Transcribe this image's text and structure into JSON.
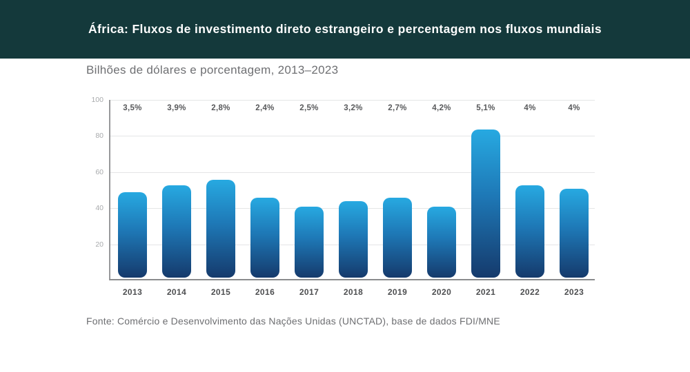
{
  "header": {
    "title": "África: Fluxos de investimento direto estrangeiro e percentagem nos fluxos mundiais"
  },
  "subtitle": "Bilhões de dólares e porcentagem, 2013–2023",
  "source": "Fonte: Comércio e Desenvolvimento das Nações Unidas (UNCTAD), base de dados FDI/MNE",
  "colors": {
    "header_bg": "#14393B",
    "title_text": "#FFFFFF",
    "bar_gradient_top": "#27A9E1",
    "bar_gradient_bottom": "#153A6C",
    "gridline": "#E4E5E6",
    "axis": "#97989A",
    "y_tick_label": "#A8AAAC",
    "pct_label": "#58595B",
    "year_label": "#4D4E50",
    "subtitle_text": "#6E6F72",
    "source_text": "#6D6E71"
  },
  "chart_data": {
    "type": "bar",
    "title": "África: Fluxos de investimento direto estrangeiro e percentagem nos fluxos mundiais",
    "subtitle": "Bilhões de dólares e porcentagem, 2013–2023",
    "categories": [
      "2013",
      "2014",
      "2015",
      "2016",
      "2017",
      "2018",
      "2019",
      "2020",
      "2021",
      "2022",
      "2023"
    ],
    "values": [
      48,
      52,
      55,
      45,
      40,
      43,
      45,
      40,
      83,
      52,
      50
    ],
    "pct_labels": [
      "3,5%",
      "3,9%",
      "2,8%",
      "2,4%",
      "2,5%",
      "3,2%",
      "2,7%",
      "4,2%",
      "5,1%",
      "4%",
      "4%"
    ],
    "xlabel": "",
    "ylabel": "",
    "ylim": [
      0,
      100
    ],
    "yticks": [
      20,
      40,
      60,
      80,
      100
    ],
    "grid": true,
    "legend": "none"
  }
}
